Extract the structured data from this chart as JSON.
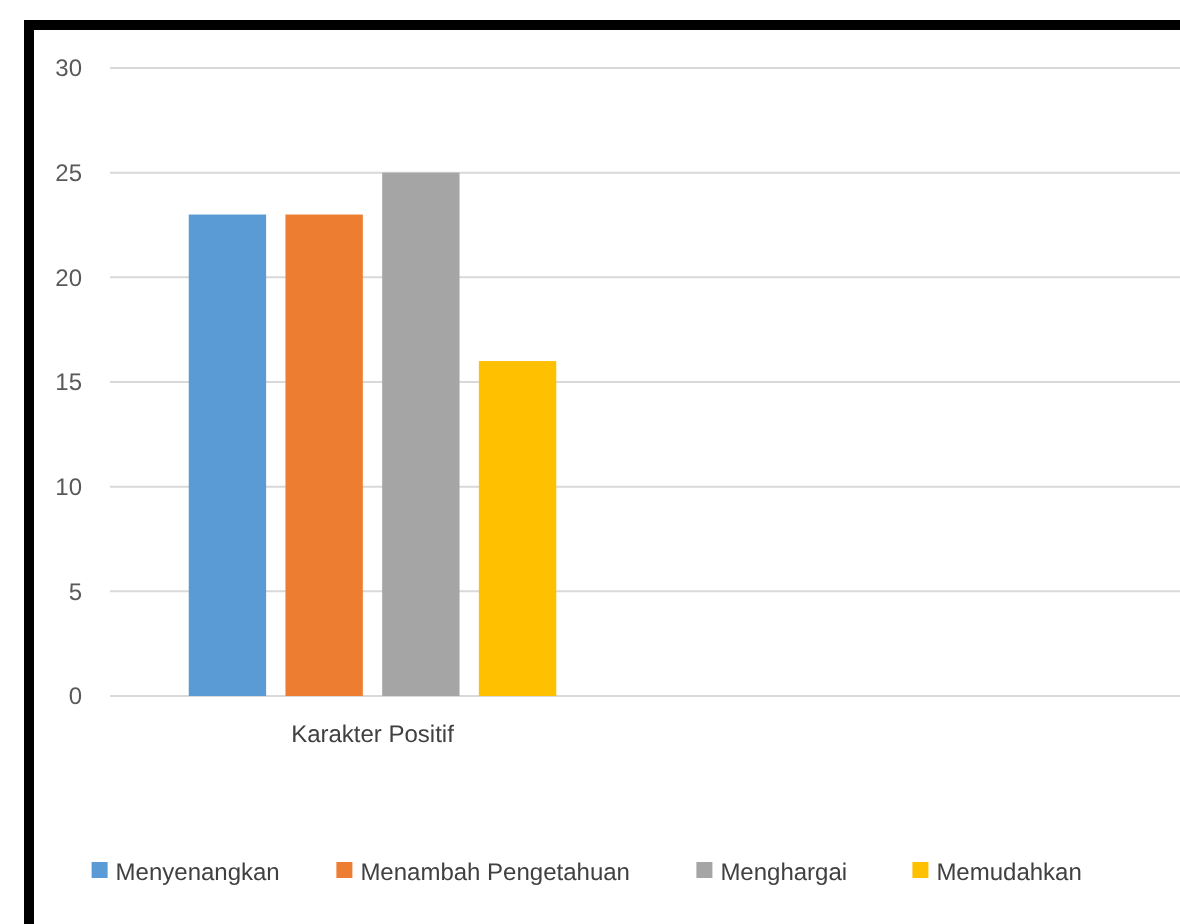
{
  "chart_data": {
    "type": "bar",
    "categories": [
      "Karakter Positif",
      null
    ],
    "series": [
      {
        "name": "Menyenangkan",
        "color": "#5b9bd5",
        "values": [
          23,
          null
        ]
      },
      {
        "name": "Menambah Pengetahuan",
        "color": "#ed7d31",
        "values": [
          23,
          null
        ]
      },
      {
        "name": "Menghargai",
        "color": "#a5a5a5",
        "values": [
          25,
          null
        ]
      },
      {
        "name": "Memudahkan",
        "color": "#ffc000",
        "values": [
          16,
          null
        ]
      }
    ],
    "ylim": [
      0,
      30
    ],
    "yticks": [
      0,
      5,
      10,
      15,
      20,
      25,
      30
    ],
    "grid": "y",
    "legend": "bottom"
  }
}
